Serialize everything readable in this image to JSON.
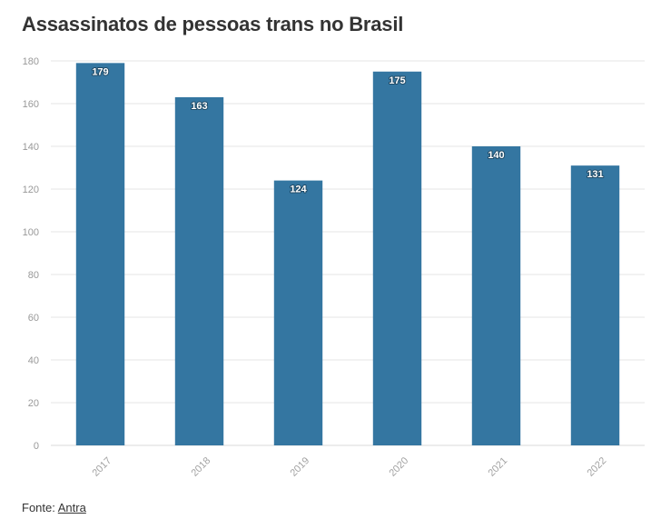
{
  "title": "Assassinatos de pessoas trans no Brasil",
  "footer": {
    "label": "Fonte:",
    "link_text": "Antra"
  },
  "colors": {
    "bar": "#3476a1",
    "grid": "#e6e6e6",
    "text": "#333333"
  },
  "chart_data": {
    "type": "bar",
    "categories": [
      "2017",
      "2018",
      "2019",
      "2020",
      "2021",
      "2022"
    ],
    "values": [
      179,
      163,
      124,
      175,
      140,
      131
    ],
    "title": "Assassinatos de pessoas trans no Brasil",
    "xlabel": "",
    "ylabel": "",
    "ylim": [
      0,
      180
    ],
    "yticks": [
      0,
      20,
      40,
      60,
      80,
      100,
      120,
      140,
      160,
      180
    ],
    "grid": true,
    "data_labels": true,
    "x_tick_rotation": -45
  }
}
